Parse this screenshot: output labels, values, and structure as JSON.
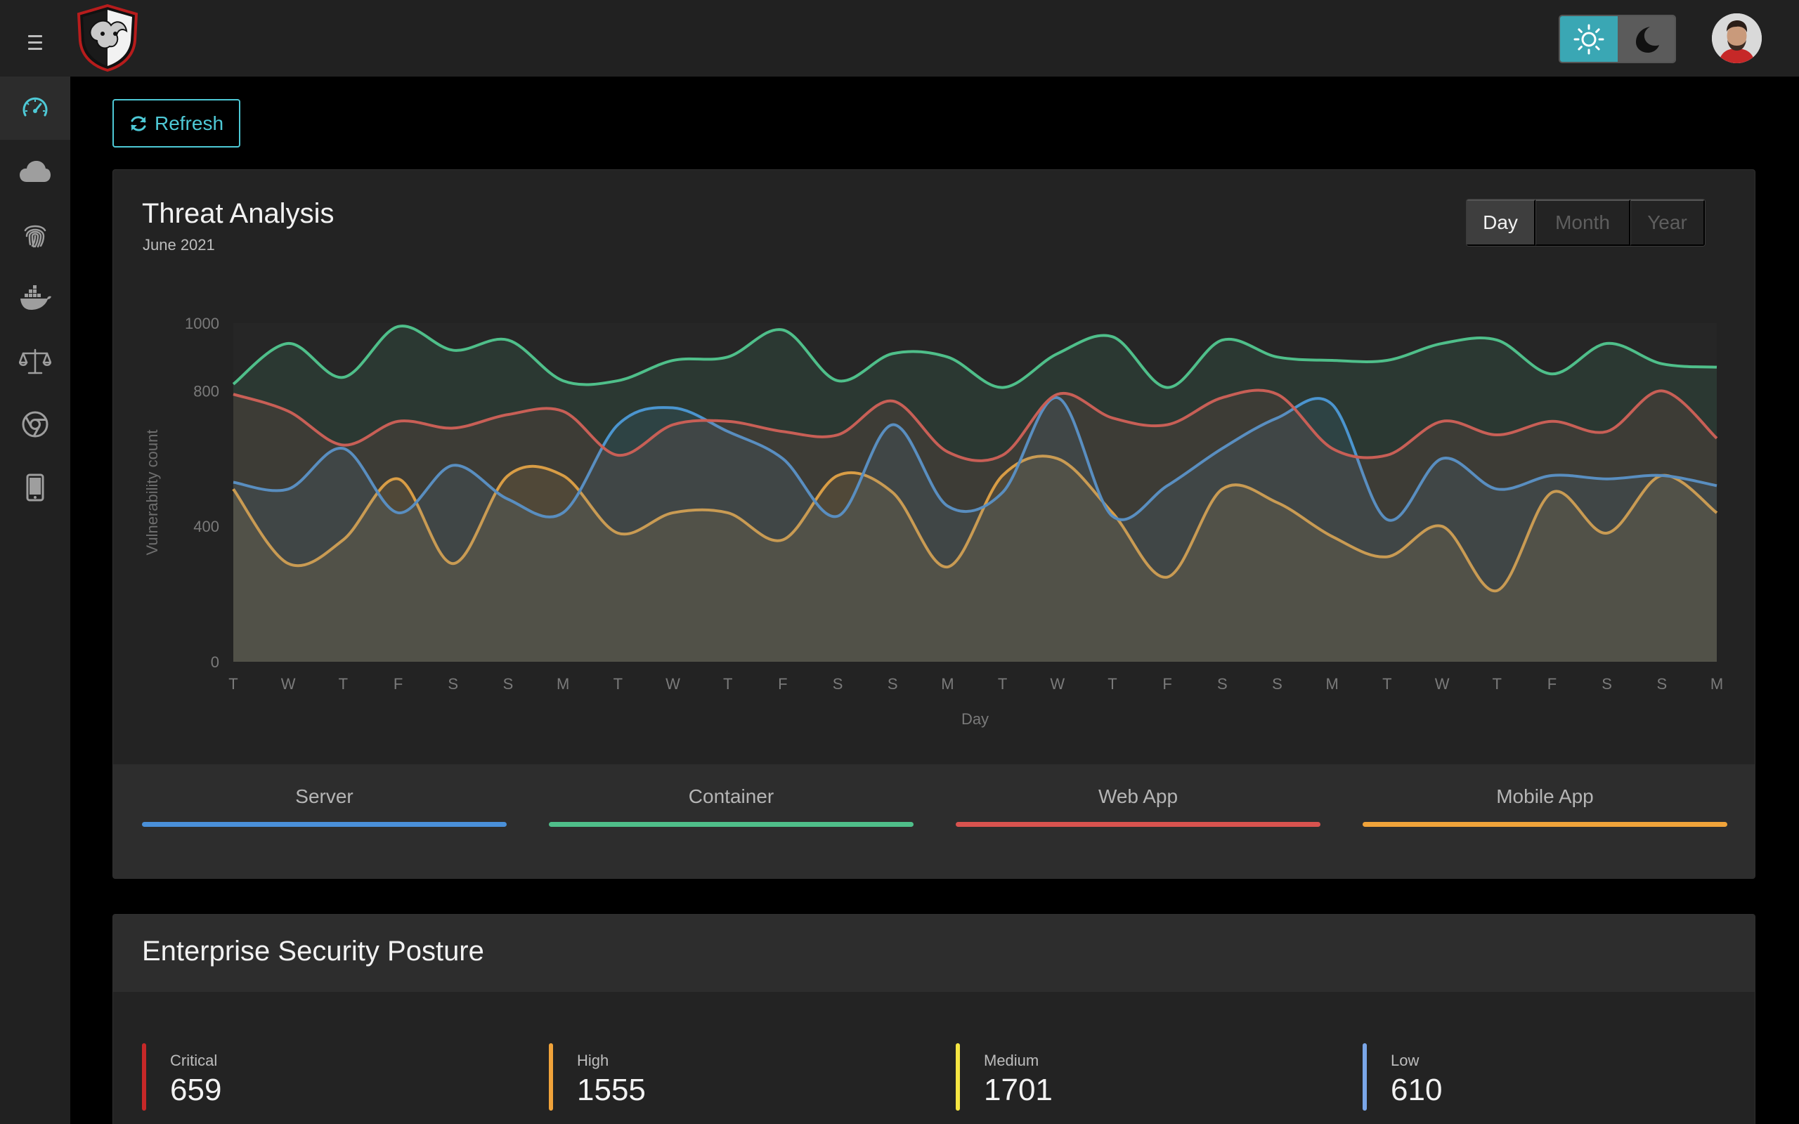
{
  "toolbar": {
    "refresh_label": "Refresh"
  },
  "sidebar": {
    "items": [
      {
        "icon": "dashboard-gauge-icon",
        "active": true
      },
      {
        "icon": "cloud-icon",
        "active": false
      },
      {
        "icon": "fingerprint-icon",
        "active": false
      },
      {
        "icon": "docker-icon",
        "active": false
      },
      {
        "icon": "balance-scale-icon",
        "active": false
      },
      {
        "icon": "chrome-icon",
        "active": false
      },
      {
        "icon": "mobile-phone-icon",
        "active": false
      }
    ]
  },
  "threat_analysis": {
    "title": "Threat Analysis",
    "subtitle": "June 2021",
    "ranges": [
      "Day",
      "Month",
      "Year"
    ],
    "active_range": "Day"
  },
  "colors": {
    "server": "#4a90d9",
    "container": "#4fbf8a",
    "web_app": "#d9534f",
    "mobile_app": "#f0a33a",
    "critical": "#c62828",
    "high": "#f0a33a",
    "medium": "#f5e642",
    "low": "#7aa6e8",
    "accent": "#4ec9d6"
  },
  "chart_data": {
    "type": "area",
    "xlabel": "Day",
    "ylabel": "Vulnerability count",
    "ylim": [
      0,
      1000
    ],
    "yticks": [
      0,
      400,
      800,
      1000
    ],
    "categories": [
      "T",
      "W",
      "T",
      "F",
      "S",
      "S",
      "M",
      "T",
      "W",
      "T",
      "F",
      "S",
      "S",
      "M",
      "T",
      "W",
      "T",
      "F",
      "S",
      "S",
      "M",
      "T",
      "W",
      "T",
      "F",
      "S",
      "S",
      "M"
    ],
    "series": [
      {
        "name": "Mobile App",
        "key": "mobile_app",
        "values": [
          510,
          290,
          360,
          540,
          290,
          550,
          550,
          380,
          440,
          440,
          360,
          550,
          500,
          280,
          550,
          600,
          440,
          250,
          510,
          470,
          370,
          310,
          400,
          210,
          500,
          380,
          550,
          440
        ]
      },
      {
        "name": "Server",
        "key": "server",
        "values": [
          530,
          510,
          630,
          440,
          580,
          480,
          440,
          700,
          750,
          680,
          600,
          430,
          700,
          460,
          500,
          780,
          430,
          520,
          630,
          720,
          760,
          420,
          600,
          510,
          550,
          540,
          550,
          520
        ]
      },
      {
        "name": "Web App",
        "key": "web_app",
        "values": [
          790,
          740,
          640,
          710,
          690,
          730,
          740,
          610,
          700,
          710,
          680,
          670,
          770,
          620,
          610,
          790,
          720,
          700,
          780,
          790,
          630,
          610,
          710,
          670,
          710,
          680,
          800,
          660
        ]
      },
      {
        "name": "Container",
        "key": "container",
        "values": [
          820,
          940,
          840,
          990,
          920,
          950,
          830,
          830,
          890,
          900,
          980,
          830,
          910,
          900,
          810,
          910,
          960,
          810,
          950,
          900,
          890,
          890,
          940,
          950,
          850,
          940,
          880,
          870
        ]
      }
    ]
  },
  "legend": [
    {
      "label": "Server",
      "key": "server"
    },
    {
      "label": "Container",
      "key": "container"
    },
    {
      "label": "Web App",
      "key": "web_app"
    },
    {
      "label": "Mobile App",
      "key": "mobile_app"
    }
  ],
  "posture": {
    "title": "Enterprise Security Posture",
    "stats": [
      {
        "label": "Critical",
        "value": "659",
        "key": "critical"
      },
      {
        "label": "High",
        "value": "1555",
        "key": "high"
      },
      {
        "label": "Medium",
        "value": "1701",
        "key": "medium"
      },
      {
        "label": "Low",
        "value": "610",
        "key": "low"
      }
    ]
  }
}
